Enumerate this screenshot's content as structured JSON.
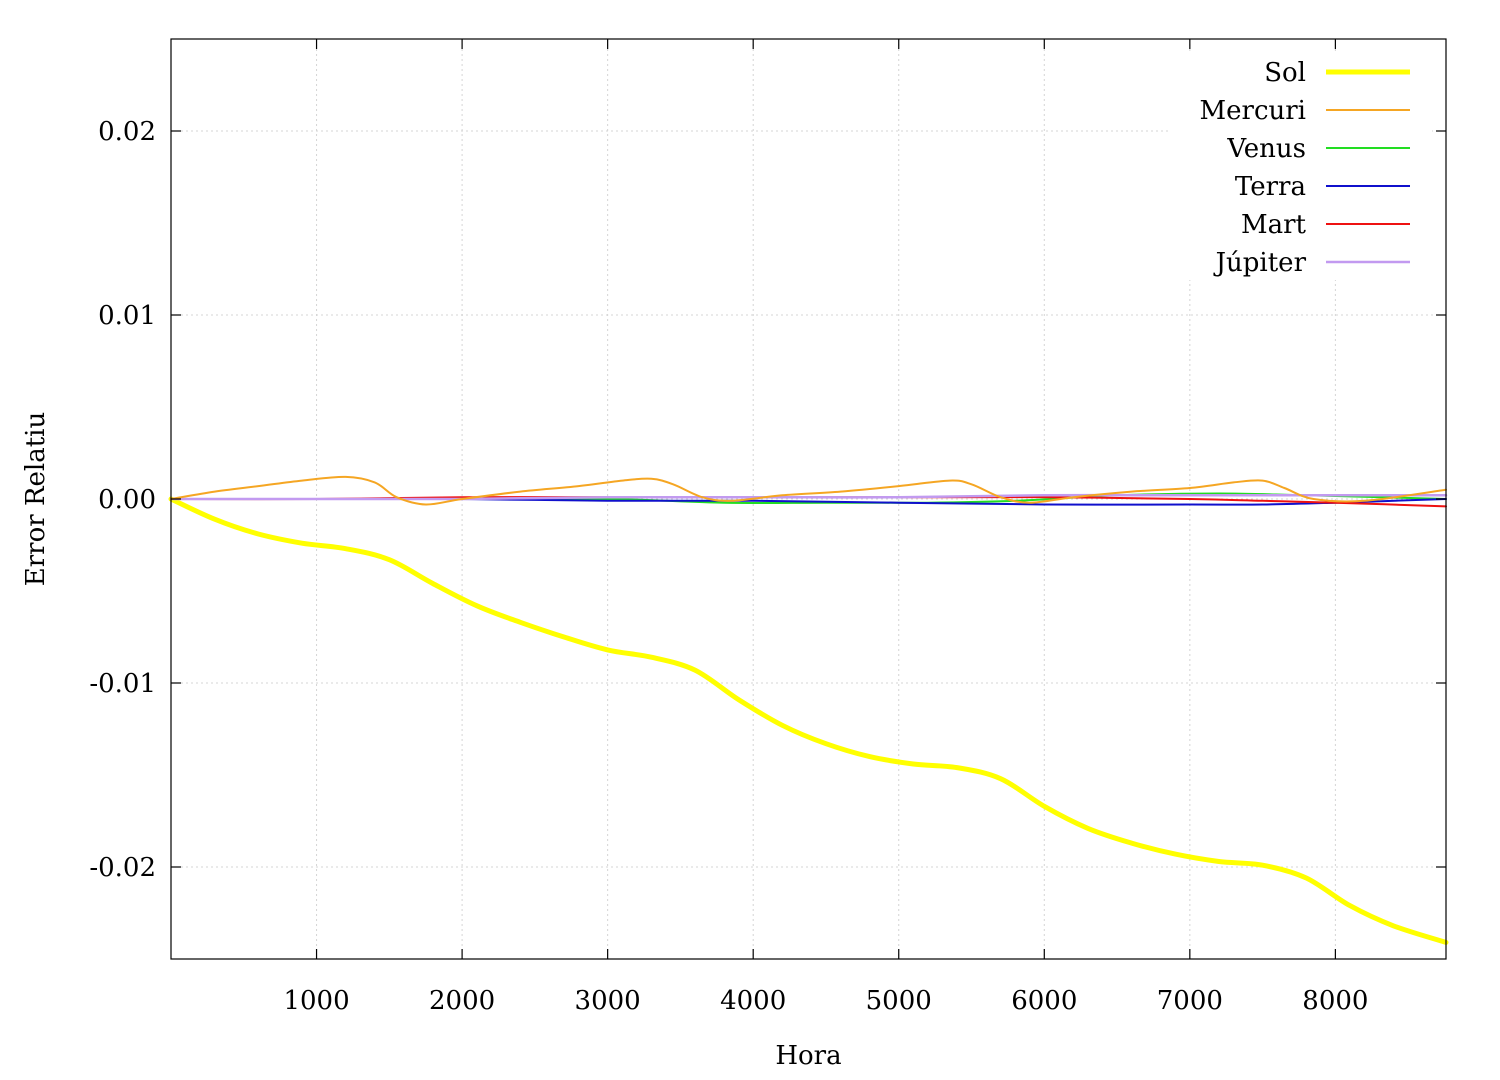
{
  "chart_data": {
    "type": "line",
    "title": "",
    "xlabel": "Hora",
    "ylabel": "Error Relatiu",
    "xlim": [
      0,
      8760
    ],
    "ylim": [
      -0.025,
      0.025
    ],
    "xticks": [
      1000,
      2000,
      3000,
      4000,
      5000,
      6000,
      7000,
      8000
    ],
    "xtick_labels": [
      "1000",
      "2000",
      "3000",
      "4000",
      "5000",
      "6000",
      "7000",
      "8000"
    ],
    "yticks": [
      -0.02,
      -0.01,
      0.0,
      0.01,
      0.02
    ],
    "ytick_labels": [
      "-0.02",
      "-0.01",
      "0.00",
      "0.01",
      "0.02"
    ],
    "grid": true,
    "legend_position": "top-right",
    "series": [
      {
        "name": "Sol",
        "color": "#ffff00",
        "x": [
          0,
          300,
          600,
          900,
          1200,
          1500,
          1800,
          2100,
          2400,
          2700,
          3000,
          3300,
          3600,
          3900,
          4200,
          4500,
          4800,
          5100,
          5400,
          5700,
          6000,
          6300,
          6600,
          6900,
          7200,
          7500,
          7800,
          8100,
          8400,
          8760
        ],
        "y": [
          0,
          -0.0011,
          -0.0019,
          -0.0024,
          -0.0027,
          -0.0033,
          -0.0046,
          -0.0058,
          -0.0067,
          -0.0075,
          -0.0082,
          -0.0086,
          -0.0093,
          -0.0109,
          -0.0123,
          -0.0133,
          -0.014,
          -0.0144,
          -0.0146,
          -0.0152,
          -0.0167,
          -0.0179,
          -0.0187,
          -0.0193,
          -0.0197,
          -0.0199,
          -0.0206,
          -0.0221,
          -0.0232,
          -0.0241
        ]
      },
      {
        "name": "Mercuri",
        "color": "#f5a623",
        "x": [
          0,
          300,
          600,
          900,
          1200,
          1400,
          1550,
          1750,
          2000,
          2400,
          2800,
          3100,
          3300,
          3450,
          3650,
          3850,
          4200,
          4600,
          5000,
          5350,
          5500,
          5700,
          5900,
          6200,
          6600,
          7000,
          7300,
          7500,
          7650,
          7850,
          8200,
          8760
        ],
        "y": [
          0,
          0.0004,
          0.0007,
          0.001,
          0.0012,
          0.0009,
          0.0001,
          -0.0003,
          0.0,
          0.0004,
          0.0007,
          0.001,
          0.0011,
          0.0008,
          0.0001,
          -0.0001,
          0.0002,
          0.0004,
          0.0007,
          0.001,
          0.0008,
          0.0001,
          -0.0002,
          0.0001,
          0.0004,
          0.0006,
          0.0009,
          0.001,
          0.0006,
          0.0,
          -0.0001,
          0.0005
        ]
      },
      {
        "name": "Venus",
        "color": "#22dd22",
        "x": [
          0,
          1000,
          2000,
          3000,
          3800,
          4500,
          5200,
          5800,
          6500,
          7200,
          7800,
          8760
        ],
        "y": [
          0,
          0.0,
          0.0,
          0.0,
          -0.0002,
          -0.0002,
          -0.0002,
          -0.0001,
          0.0002,
          0.0003,
          0.0002,
          0.0
        ]
      },
      {
        "name": "Terra",
        "color": "#1010cc",
        "x": [
          0,
          1000,
          2000,
          3000,
          4000,
          5000,
          6000,
          7000,
          7500,
          8000,
          8760
        ],
        "y": [
          0,
          0.0,
          0.0,
          -0.0001,
          -0.0001,
          -0.0002,
          -0.0003,
          -0.0003,
          -0.0003,
          -0.0002,
          0.0
        ]
      },
      {
        "name": "Mart",
        "color": "#ee1111",
        "x": [
          0,
          1000,
          2000,
          3000,
          4000,
          5000,
          6000,
          7000,
          7500,
          8000,
          8760
        ],
        "y": [
          0,
          0.0,
          0.0001,
          0.0001,
          0.0001,
          0.0001,
          0.0001,
          0.0,
          -0.0001,
          -0.0002,
          -0.0004
        ]
      },
      {
        "name": "Júpiter",
        "color": "#c29af0",
        "x": [
          0,
          1000,
          2000,
          3000,
          4000,
          5000,
          6000,
          7000,
          8000,
          8760
        ],
        "y": [
          0,
          0.0,
          0.0,
          0.0001,
          0.0001,
          0.0001,
          0.0002,
          0.0002,
          0.0002,
          0.0002
        ]
      }
    ]
  }
}
